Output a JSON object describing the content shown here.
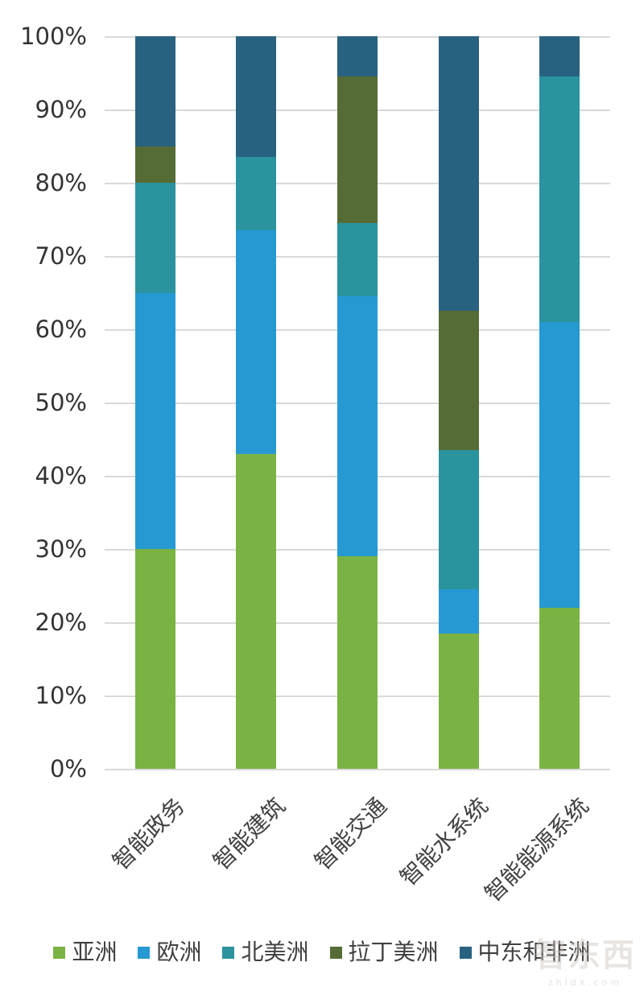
{
  "chart_data": {
    "type": "bar",
    "variant": "stacked-100-percent",
    "title": "",
    "xlabel": "",
    "ylabel": "",
    "categories": [
      "智能政务",
      "智能建筑",
      "智能交通",
      "智能水系统",
      "智能能源系统"
    ],
    "series": [
      {
        "name": "亚洲",
        "color": "#7AB344",
        "values": [
          30,
          43,
          29,
          18.5,
          22
        ]
      },
      {
        "name": "欧洲",
        "color": "#2699D3",
        "values": [
          35,
          30.5,
          35.5,
          6,
          39
        ]
      },
      {
        "name": "北美洲",
        "color": "#2A939E",
        "values": [
          15,
          10,
          10,
          19,
          33.5
        ]
      },
      {
        "name": "拉丁美洲",
        "color": "#566C36",
        "values": [
          5,
          0,
          20,
          19,
          0
        ]
      },
      {
        "name": "中东和非洲",
        "color": "#296280",
        "values": [
          15,
          16.5,
          5.5,
          37.5,
          5.5
        ]
      }
    ],
    "y_ticks": [
      "100%",
      "90%",
      "80%",
      "70%",
      "60%",
      "50%",
      "40%",
      "30%",
      "20%",
      "10%",
      "0%"
    ],
    "ylim": [
      0,
      100
    ],
    "grid": true,
    "gridline_color": "#d9d9d9",
    "legend_position": "bottom"
  },
  "watermark": {
    "logo_text": "智东西",
    "domain_text": "zhidx.com"
  }
}
